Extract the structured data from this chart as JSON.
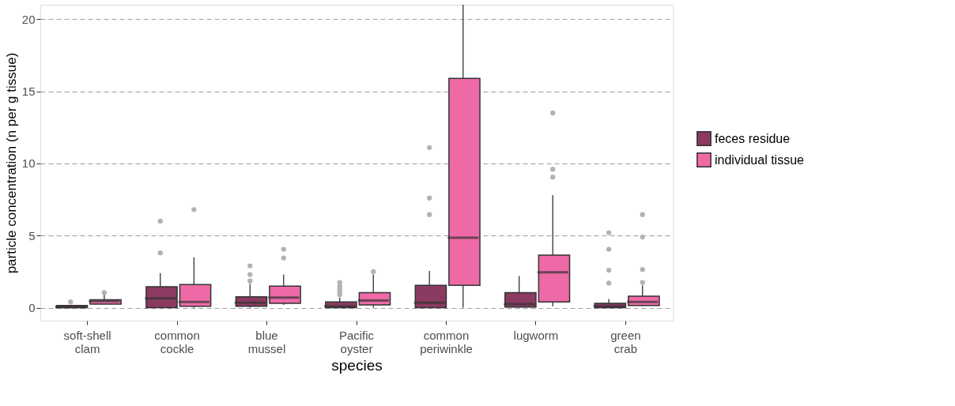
{
  "chart_data": {
    "type": "box",
    "xlabel": "species",
    "ylabel": "particle concentration (n per g tissue)",
    "categories": [
      "soft-shell clam",
      "common cockle",
      "blue mussel",
      "Pacific oyster",
      "common periwinkle",
      "lugworm",
      "green crab"
    ],
    "ylim": [
      -0.9,
      21
    ],
    "yticks": [
      0,
      5,
      10,
      15,
      20
    ],
    "grid": "y",
    "legend": "right",
    "series": [
      {
        "name": "feces residue",
        "color": "#8b3a62",
        "boxes": [
          {
            "low": 0,
            "q1": 0,
            "median": 0.05,
            "q3": 0.15,
            "high": 0.15,
            "outliers": [
              0.4
            ]
          },
          {
            "low": 0,
            "q1": 0,
            "median": 0.65,
            "q3": 1.45,
            "high": 2.4,
            "outliers": [
              3.8,
              6.0
            ]
          },
          {
            "low": 0,
            "q1": 0.1,
            "median": 0.35,
            "q3": 0.75,
            "high": 1.65,
            "outliers": [
              1.85,
              2.3,
              2.9
            ]
          },
          {
            "low": 0,
            "q1": 0,
            "median": 0.1,
            "q3": 0.4,
            "high": 0.7,
            "outliers": [
              0.9,
              1.1,
              1.3,
              1.5,
              1.75
            ]
          },
          {
            "low": 0,
            "q1": 0,
            "median": 0.35,
            "q3": 1.55,
            "high": 2.55,
            "outliers": [
              6.45,
              7.6,
              11.1
            ]
          },
          {
            "low": 0,
            "q1": 0.05,
            "median": 0.25,
            "q3": 1.05,
            "high": 2.2
          },
          {
            "low": 0,
            "q1": 0,
            "median": 0.1,
            "q3": 0.3,
            "high": 0.6,
            "outliers": [
              1.7,
              2.6,
              4.05,
              5.2
            ]
          }
        ]
      },
      {
        "name": "individual tissue",
        "color": "#ee6aa7",
        "boxes": [
          {
            "low": 0.25,
            "q1": 0.25,
            "median": 0.45,
            "q3": 0.55,
            "high": 0.9,
            "outliers": [
              1.05
            ]
          },
          {
            "low": 0,
            "q1": 0.1,
            "median": 0.4,
            "q3": 1.6,
            "high": 3.5,
            "outliers": [
              6.8
            ]
          },
          {
            "low": 0.2,
            "q1": 0.3,
            "median": 0.7,
            "q3": 1.5,
            "high": 2.3,
            "outliers": [
              3.45,
              4.05
            ]
          },
          {
            "low": 0,
            "q1": 0.2,
            "median": 0.5,
            "q3": 1.05,
            "high": 2.3,
            "outliers": [
              2.5
            ]
          },
          {
            "low": 0,
            "q1": 1.55,
            "median": 4.85,
            "q3": 15.9,
            "high": 21
          },
          {
            "low": 0.1,
            "q1": 0.4,
            "median": 2.45,
            "q3": 3.65,
            "high": 7.8,
            "outliers": [
              9.05,
              9.6,
              13.5
            ]
          },
          {
            "low": 0.1,
            "q1": 0.15,
            "median": 0.4,
            "q3": 0.8,
            "high": 1.55,
            "outliers": [
              1.75,
              2.65,
              4.9,
              6.45
            ]
          }
        ]
      }
    ]
  }
}
